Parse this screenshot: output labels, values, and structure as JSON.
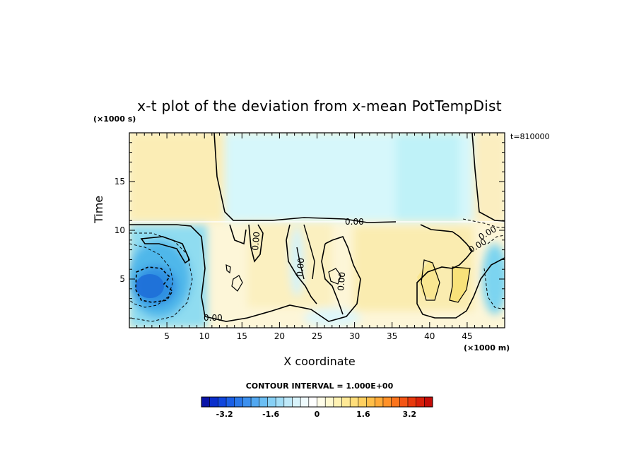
{
  "chart_data": {
    "type": "heatmap",
    "title": "x-t plot of the deviation from x-mean PotTempDist",
    "xlabel": "X coordinate",
    "ylabel": "Time",
    "x_unit": "(×1000 m)",
    "y_unit": "(×1000 s)",
    "time_stamp": "t=810000",
    "xlim": [
      0,
      50
    ],
    "ylim": [
      0,
      20
    ],
    "x_ticks": [
      "5",
      "10",
      "15",
      "20",
      "25",
      "30",
      "35",
      "40",
      "45"
    ],
    "y_ticks": [
      "5",
      "10",
      "15"
    ],
    "contour_labels": [
      "0.00",
      "0.00",
      "0.00",
      "0.00",
      "0.00",
      "0.00",
      "0.00"
    ],
    "contour_interval_text": "CONTOUR INTERVAL = 1.000E+00",
    "colorbar": {
      "range": [
        -4,
        4
      ],
      "tick_labels": [
        "-3.2",
        "-1.6",
        "0",
        "1.6",
        "3.2"
      ],
      "tick_values": [
        -3.2,
        -1.6,
        0,
        1.6,
        3.2
      ]
    },
    "regions": [
      {
        "name": "upper-left warm",
        "x": [
          0,
          13
        ],
        "t": [
          11,
          20
        ],
        "value": 0.5
      },
      {
        "name": "upper-middle cool",
        "x": [
          13,
          46
        ],
        "t": [
          11,
          20
        ],
        "value": -0.5
      },
      {
        "name": "upper-right warm",
        "x": [
          46,
          50
        ],
        "t": [
          11,
          20
        ],
        "value": 0.4
      },
      {
        "name": "lower-left cold core",
        "x": [
          0,
          6
        ],
        "t": [
          1,
          7
        ],
        "value": -3.0
      },
      {
        "name": "lower-middle warm",
        "x": [
          10,
          45
        ],
        "t": [
          0,
          11
        ],
        "value": 0.5
      },
      {
        "name": "warm blob near x=42",
        "x": [
          39,
          45
        ],
        "t": [
          2,
          7
        ],
        "value": 1.2
      },
      {
        "name": "lower-right cool",
        "x": [
          46,
          50
        ],
        "t": [
          2,
          8
        ],
        "value": -1.0
      }
    ]
  }
}
